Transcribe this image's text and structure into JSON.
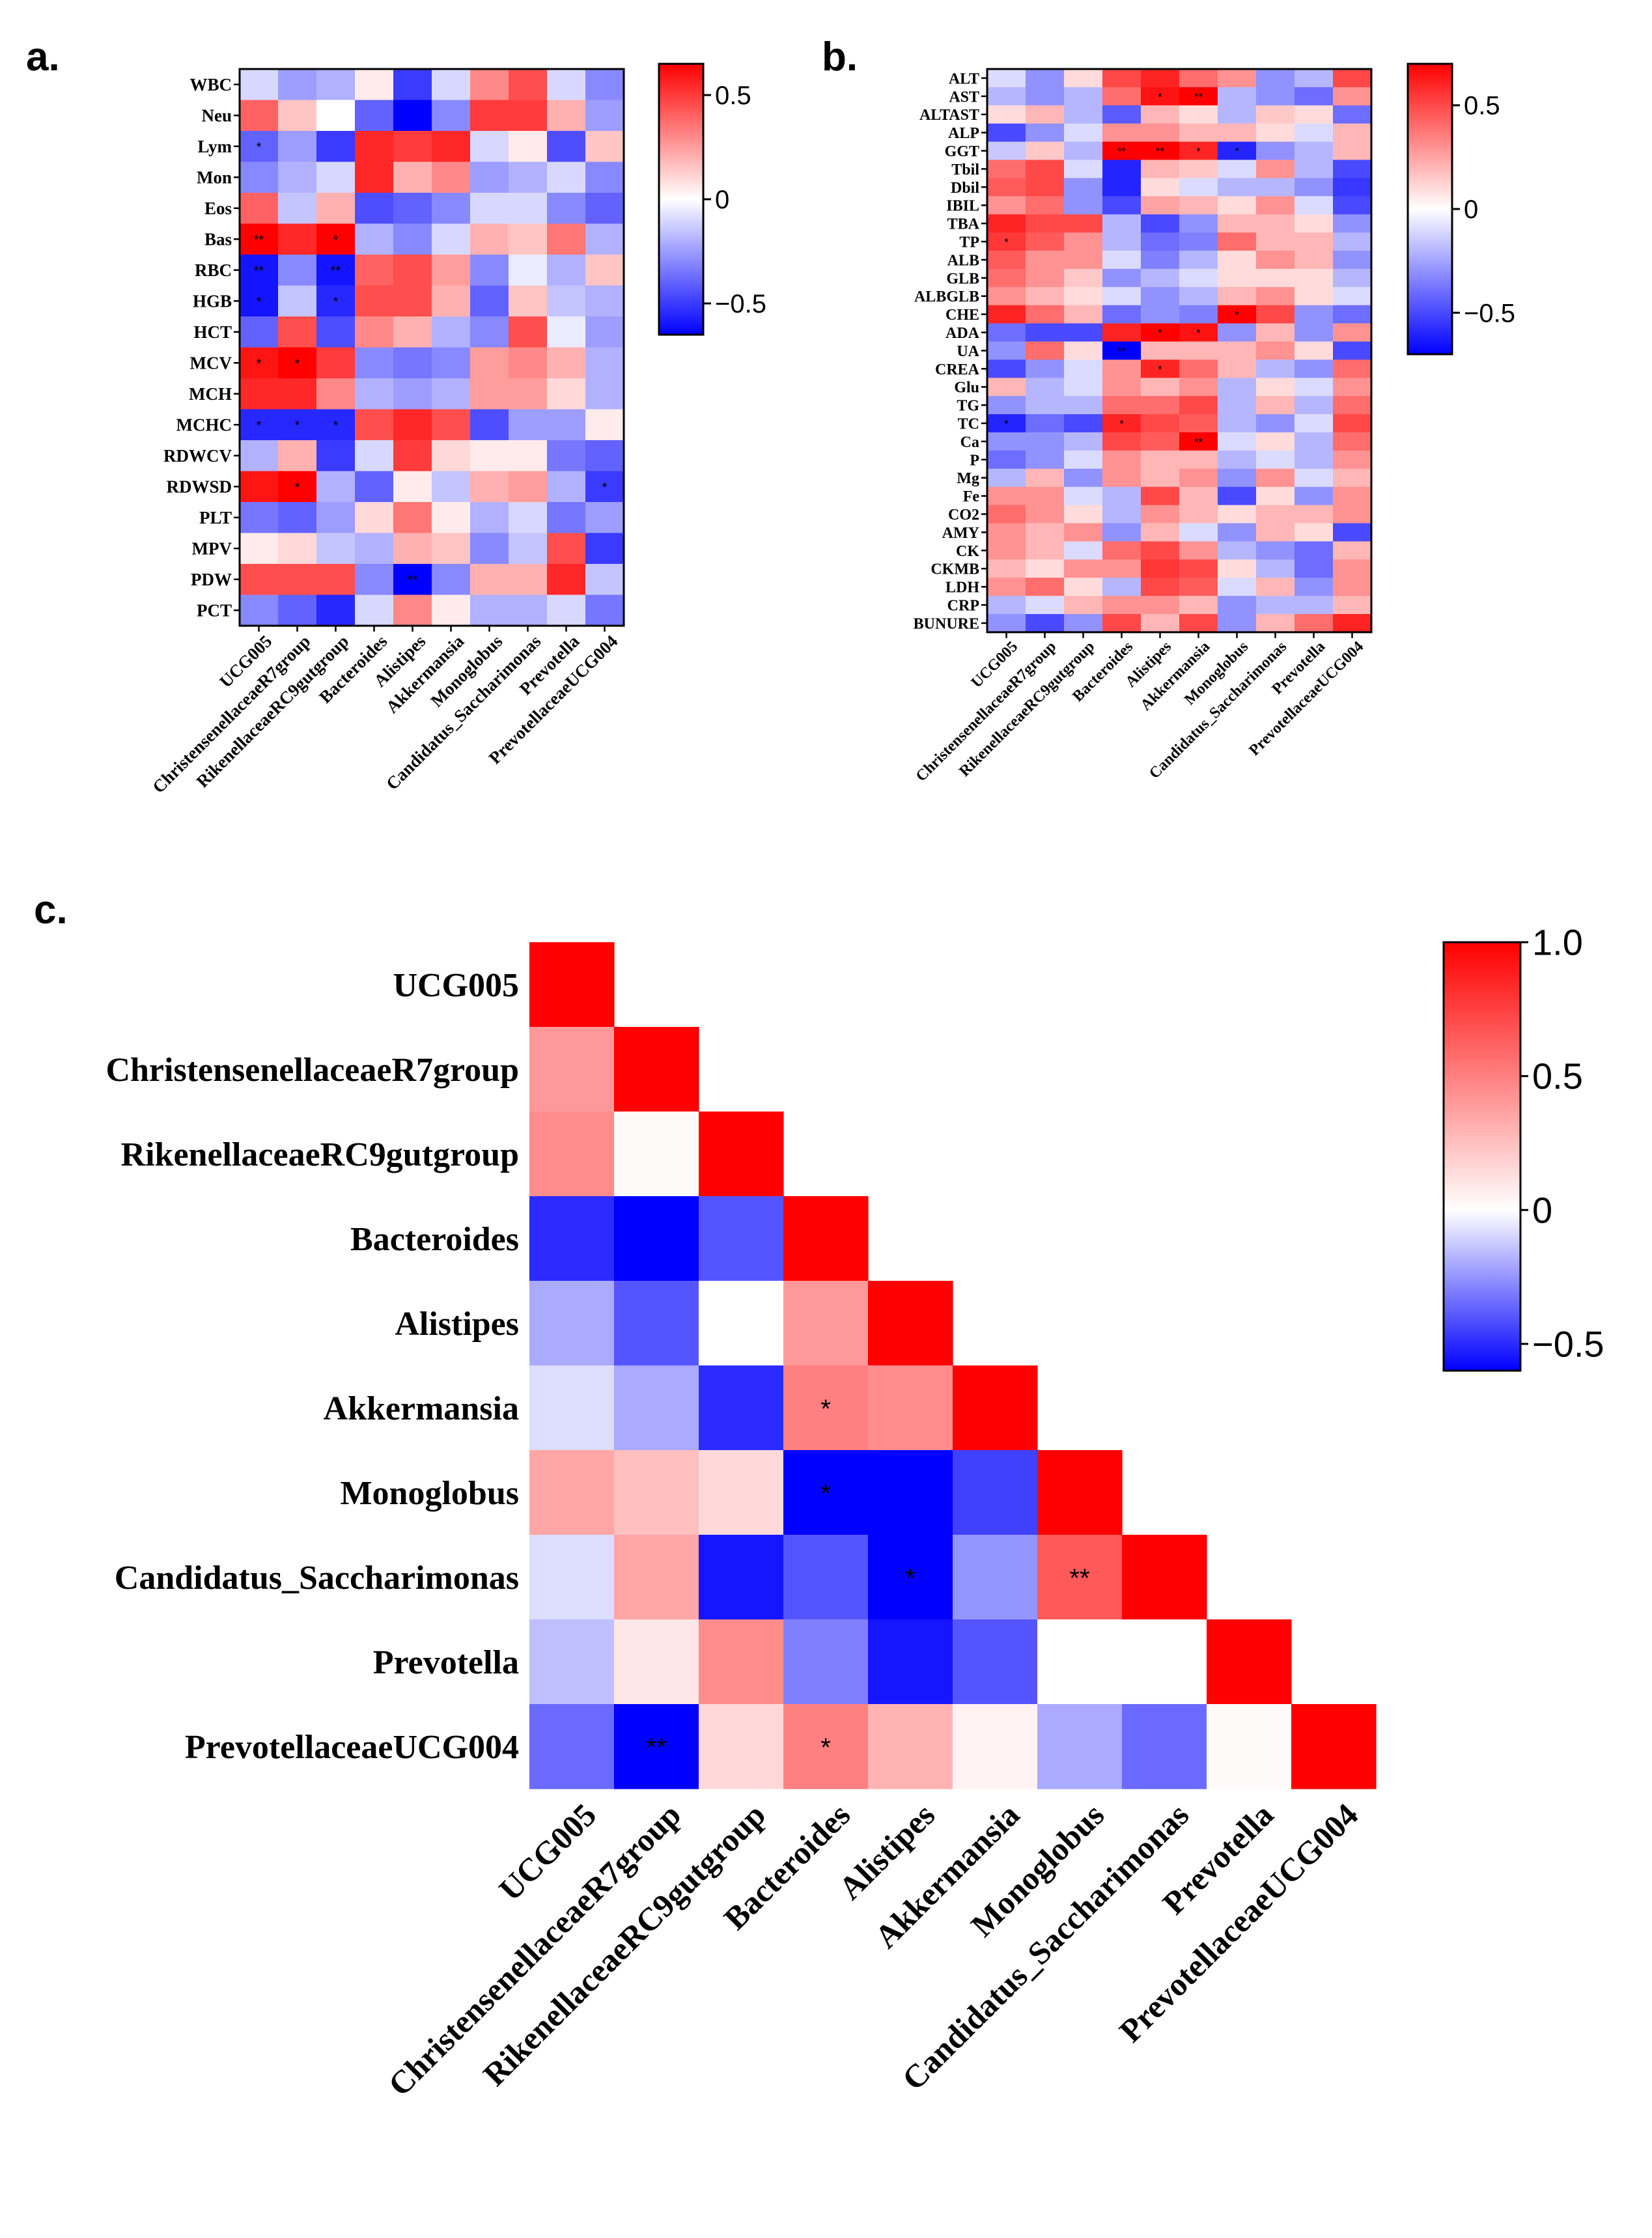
{
  "colors": {
    "neg": "#0000ff",
    "mid": "#ffffff",
    "pos": "#ff0000"
  },
  "chart_data": [
    {
      "panel": "a.",
      "type": "heatmap",
      "rows": [
        "WBC",
        "Neu",
        "Lym",
        "Mon",
        "Eos",
        "Bas",
        "RBC",
        "HGB",
        "HCT",
        "MCV",
        "MCH",
        "MCHC",
        "RDWCV",
        "RDWSD",
        "PLT",
        "MPV",
        "PDW",
        "PCT"
      ],
      "columns": [
        "UCG005",
        "ChristensenellaceaeR7group",
        "RikenellaceaeRC9gutgroup",
        "Bacteroides",
        "Alistipes",
        "Akkermansia",
        "Monoglobus",
        "Candidatus_Saccharimonas",
        "Prevotella",
        "PrevotellaceaeUCG004"
      ],
      "values": [
        [
          -0.1,
          -0.25,
          -0.2,
          0.05,
          -0.5,
          -0.1,
          0.3,
          0.45,
          -0.1,
          -0.3
        ],
        [
          0.4,
          0.15,
          0.0,
          -0.4,
          -0.65,
          -0.3,
          0.5,
          0.5,
          0.2,
          -0.25
        ],
        [
          -0.4,
          -0.25,
          -0.5,
          0.55,
          0.5,
          0.55,
          -0.1,
          0.05,
          -0.45,
          0.15
        ],
        [
          -0.3,
          -0.2,
          -0.1,
          0.55,
          0.2,
          0.3,
          -0.25,
          -0.2,
          -0.1,
          -0.3
        ],
        [
          0.4,
          -0.15,
          0.2,
          -0.45,
          -0.4,
          -0.3,
          -0.1,
          -0.1,
          -0.3,
          -0.4
        ],
        [
          0.7,
          0.55,
          0.65,
          -0.2,
          -0.3,
          -0.1,
          0.2,
          0.15,
          0.35,
          -0.2
        ],
        [
          -0.6,
          -0.3,
          -0.6,
          0.4,
          0.45,
          0.25,
          -0.3,
          -0.05,
          -0.2,
          0.15
        ],
        [
          -0.6,
          -0.15,
          -0.55,
          0.45,
          0.45,
          0.2,
          -0.4,
          0.15,
          -0.15,
          -0.2
        ],
        [
          -0.4,
          0.45,
          -0.45,
          0.3,
          0.2,
          -0.2,
          -0.3,
          0.45,
          -0.05,
          -0.25
        ],
        [
          0.6,
          0.7,
          0.5,
          -0.3,
          -0.35,
          -0.3,
          0.25,
          0.3,
          0.2,
          -0.2
        ],
        [
          0.55,
          0.55,
          0.3,
          -0.2,
          -0.25,
          -0.2,
          0.25,
          0.25,
          0.1,
          -0.2
        ],
        [
          -0.55,
          -0.55,
          -0.55,
          0.45,
          0.55,
          0.45,
          -0.45,
          -0.25,
          -0.25,
          0.05
        ],
        [
          -0.2,
          0.2,
          -0.5,
          -0.1,
          0.5,
          0.1,
          0.05,
          0.05,
          -0.35,
          -0.4
        ],
        [
          0.6,
          0.65,
          -0.2,
          -0.4,
          0.05,
          -0.15,
          0.2,
          0.25,
          -0.2,
          -0.5
        ],
        [
          -0.35,
          -0.4,
          -0.25,
          0.1,
          0.35,
          0.05,
          -0.2,
          -0.1,
          -0.35,
          -0.25
        ],
        [
          0.05,
          0.1,
          -0.15,
          -0.2,
          0.2,
          0.15,
          -0.3,
          -0.15,
          0.45,
          -0.5
        ],
        [
          0.45,
          0.45,
          0.45,
          -0.3,
          -0.75,
          -0.3,
          0.2,
          0.2,
          0.55,
          -0.15
        ],
        [
          -0.3,
          -0.4,
          -0.55,
          -0.1,
          0.3,
          0.05,
          -0.2,
          -0.2,
          -0.1,
          -0.35
        ]
      ],
      "significance": [
        {
          "row": 2,
          "col": 0,
          "mark": "*"
        },
        {
          "row": 5,
          "col": 0,
          "mark": "**"
        },
        {
          "row": 5,
          "col": 2,
          "mark": "*"
        },
        {
          "row": 6,
          "col": 0,
          "mark": "**"
        },
        {
          "row": 6,
          "col": 2,
          "mark": "**"
        },
        {
          "row": 7,
          "col": 0,
          "mark": "*"
        },
        {
          "row": 7,
          "col": 2,
          "mark": "*"
        },
        {
          "row": 9,
          "col": 0,
          "mark": "*"
        },
        {
          "row": 9,
          "col": 1,
          "mark": "*"
        },
        {
          "row": 11,
          "col": 0,
          "mark": "*"
        },
        {
          "row": 11,
          "col": 1,
          "mark": "*"
        },
        {
          "row": 11,
          "col": 2,
          "mark": "*"
        },
        {
          "row": 13,
          "col": 1,
          "mark": "*"
        },
        {
          "row": 13,
          "col": 9,
          "mark": "*"
        },
        {
          "row": 16,
          "col": 4,
          "mark": "**"
        }
      ],
      "colorbar": {
        "min": -0.65,
        "max": 0.65,
        "ticks": [
          0.5,
          0,
          -0.5
        ],
        "tick_labels": [
          "0.5",
          "0",
          "−0.5"
        ]
      }
    },
    {
      "panel": "b.",
      "type": "heatmap",
      "rows": [
        "ALT",
        "AST",
        "ALTAST",
        "ALP",
        "GGT",
        "Tbil",
        "Dbil",
        "IBIL",
        "TBA",
        "TP",
        "ALB",
        "GLB",
        "ALBGLB",
        "CHE",
        "ADA",
        "UA",
        "CREA",
        "Glu",
        "TG",
        "TC",
        "Ca",
        "P",
        "Mg",
        "Fe",
        "CO2",
        "AMY",
        "CK",
        "CKMB",
        "LDH",
        "CRP",
        "BUNURE"
      ],
      "columns": [
        "UCG005",
        "ChristensenellaceaeR7group",
        "RikenellaceaeRC9gutgroup",
        "Bacteroides",
        "Alistipes",
        "Akkermansia",
        "Monoglobus",
        "Candidatus_Saccharimonas",
        "Prevotella",
        "PrevotellaceaeUCG004"
      ],
      "values": [
        [
          -0.1,
          -0.3,
          0.1,
          0.5,
          0.6,
          0.4,
          0.3,
          -0.3,
          -0.2,
          0.5
        ],
        [
          -0.2,
          -0.3,
          -0.2,
          0.4,
          0.65,
          0.7,
          -0.2,
          -0.3,
          -0.4,
          0.3
        ],
        [
          0.1,
          0.2,
          -0.2,
          -0.45,
          0.2,
          0.1,
          -0.2,
          0.15,
          0.1,
          -0.4
        ],
        [
          -0.5,
          -0.3,
          -0.1,
          0.3,
          0.3,
          0.2,
          0.2,
          0.1,
          -0.1,
          0.2
        ],
        [
          -0.15,
          0.15,
          -0.2,
          0.7,
          0.7,
          0.6,
          -0.6,
          -0.3,
          -0.2,
          0.2
        ],
        [
          0.4,
          0.5,
          -0.1,
          -0.6,
          0.2,
          0.15,
          -0.1,
          0.3,
          -0.2,
          -0.5
        ],
        [
          0.45,
          0.5,
          -0.3,
          -0.6,
          0.1,
          -0.1,
          -0.2,
          -0.2,
          -0.3,
          -0.55
        ],
        [
          0.3,
          0.4,
          -0.3,
          -0.5,
          0.25,
          0.2,
          0.1,
          0.3,
          -0.1,
          -0.5
        ],
        [
          0.6,
          0.5,
          0.5,
          -0.2,
          -0.5,
          -0.3,
          0.2,
          0.2,
          0.1,
          -0.3
        ],
        [
          0.55,
          0.45,
          0.3,
          -0.2,
          -0.4,
          -0.35,
          0.4,
          0.2,
          0.2,
          -0.2
        ],
        [
          0.45,
          0.3,
          0.3,
          -0.1,
          -0.35,
          -0.2,
          0.1,
          0.3,
          0.2,
          -0.3
        ],
        [
          0.4,
          0.3,
          0.15,
          -0.3,
          -0.2,
          -0.1,
          0.1,
          0.1,
          0.1,
          -0.2
        ],
        [
          0.3,
          0.2,
          0.1,
          -0.1,
          -0.3,
          -0.2,
          0.2,
          0.3,
          0.1,
          -0.1
        ],
        [
          0.6,
          0.4,
          0.2,
          -0.4,
          -0.3,
          -0.35,
          0.7,
          0.5,
          -0.3,
          -0.4
        ],
        [
          -0.4,
          -0.5,
          -0.5,
          0.6,
          0.7,
          0.65,
          -0.3,
          0.2,
          -0.3,
          0.3
        ],
        [
          -0.3,
          0.4,
          0.1,
          -0.75,
          0.2,
          0.2,
          0.2,
          0.3,
          0.1,
          -0.5
        ],
        [
          -0.5,
          -0.3,
          -0.1,
          0.3,
          0.6,
          0.4,
          0.2,
          -0.2,
          -0.3,
          0.4
        ],
        [
          0.2,
          -0.2,
          -0.1,
          0.3,
          0.2,
          0.3,
          -0.2,
          0.1,
          -0.1,
          0.3
        ],
        [
          -0.3,
          -0.2,
          -0.2,
          0.4,
          0.4,
          0.5,
          -0.2,
          0.2,
          -0.2,
          0.4
        ],
        [
          -0.6,
          -0.4,
          -0.5,
          0.6,
          0.5,
          0.45,
          -0.2,
          -0.3,
          -0.1,
          0.5
        ],
        [
          -0.3,
          -0.3,
          -0.2,
          0.5,
          0.45,
          0.75,
          -0.1,
          0.1,
          -0.2,
          0.4
        ],
        [
          -0.4,
          -0.3,
          -0.1,
          0.3,
          0.2,
          0.2,
          -0.2,
          -0.1,
          -0.2,
          0.3
        ],
        [
          -0.2,
          0.2,
          -0.3,
          0.3,
          0.2,
          0.3,
          -0.3,
          0.3,
          -0.1,
          0.2
        ],
        [
          0.3,
          0.3,
          -0.1,
          -0.2,
          0.5,
          0.2,
          -0.5,
          0.1,
          -0.3,
          0.3
        ],
        [
          0.4,
          0.3,
          0.1,
          -0.2,
          0.3,
          0.2,
          0.1,
          0.2,
          0.2,
          0.3
        ],
        [
          0.3,
          0.2,
          0.3,
          -0.3,
          0.2,
          -0.1,
          -0.3,
          0.2,
          0.1,
          -0.5
        ],
        [
          0.3,
          0.2,
          -0.1,
          0.4,
          0.5,
          0.3,
          -0.2,
          -0.3,
          -0.4,
          0.2
        ],
        [
          0.2,
          0.1,
          0.3,
          0.3,
          0.55,
          0.5,
          0.1,
          -0.2,
          -0.4,
          0.3
        ],
        [
          0.3,
          0.4,
          0.1,
          -0.2,
          0.5,
          0.45,
          -0.1,
          0.2,
          -0.3,
          0.3
        ],
        [
          -0.2,
          -0.1,
          0.2,
          0.3,
          0.3,
          0.2,
          -0.3,
          -0.2,
          -0.2,
          0.2
        ],
        [
          -0.3,
          -0.5,
          -0.3,
          0.5,
          0.2,
          0.5,
          -0.3,
          0.2,
          0.4,
          0.6
        ]
      ],
      "significance": [
        {
          "row": 1,
          "col": 4,
          "mark": "*"
        },
        {
          "row": 1,
          "col": 5,
          "mark": "**"
        },
        {
          "row": 4,
          "col": 3,
          "mark": "**"
        },
        {
          "row": 4,
          "col": 4,
          "mark": "**"
        },
        {
          "row": 4,
          "col": 5,
          "mark": "*"
        },
        {
          "row": 4,
          "col": 6,
          "mark": "*"
        },
        {
          "row": 9,
          "col": 0,
          "mark": "*"
        },
        {
          "row": 13,
          "col": 6,
          "mark": "*"
        },
        {
          "row": 14,
          "col": 4,
          "mark": "*"
        },
        {
          "row": 14,
          "col": 5,
          "mark": "*"
        },
        {
          "row": 15,
          "col": 3,
          "mark": "**"
        },
        {
          "row": 16,
          "col": 4,
          "mark": "*"
        },
        {
          "row": 19,
          "col": 0,
          "mark": "*"
        },
        {
          "row": 19,
          "col": 3,
          "mark": "*"
        },
        {
          "row": 20,
          "col": 5,
          "mark": "**"
        }
      ],
      "colorbar": {
        "min": -0.7,
        "max": 0.7,
        "ticks": [
          0.5,
          0,
          -0.5
        ],
        "tick_labels": [
          "0.5",
          "0",
          "−0.5"
        ]
      }
    },
    {
      "panel": "c.",
      "type": "heatmap",
      "layout": "lower-triangle",
      "rows": [
        "UCG005",
        "ChristensenellaceaeR7group",
        "RikenellaceaeRC9gutgroup",
        "Bacteroides",
        "Alistipes",
        "Akkermansia",
        "Monoglobus",
        "Candidatus_Saccharimonas",
        "Prevotella",
        "PrevotellaceaeUCG004"
      ],
      "columns": [
        "UCG005",
        "ChristensenellaceaeR7group",
        "RikenellaceaeRC9gutgroup",
        "Bacteroides",
        "Alistipes",
        "Akkermansia",
        "Monoglobus",
        "Candidatus_Saccharimonas",
        "Prevotella",
        "PrevotellaceaeUCG004"
      ],
      "values": [
        [
          1.0
        ],
        [
          0.4,
          1.0
        ],
        [
          0.45,
          0.02,
          1.0
        ],
        [
          -0.5,
          -0.65,
          -0.4,
          1.0
        ],
        [
          -0.2,
          -0.4,
          0.0,
          0.4,
          1.0
        ],
        [
          -0.08,
          -0.2,
          -0.5,
          0.5,
          0.45,
          1.0
        ],
        [
          0.35,
          0.25,
          0.15,
          -0.75,
          -0.65,
          -0.45,
          1.0
        ],
        [
          -0.08,
          0.35,
          -0.55,
          -0.4,
          -0.7,
          -0.25,
          0.65,
          1.0
        ],
        [
          -0.15,
          0.1,
          0.45,
          -0.3,
          -0.55,
          -0.4,
          0.0,
          0.0,
          1.0
        ],
        [
          -0.35,
          -0.8,
          0.15,
          0.5,
          0.3,
          0.05,
          -0.2,
          -0.35,
          0.02,
          1.0
        ]
      ],
      "significance": [
        {
          "row": 5,
          "col": 3,
          "mark": "*"
        },
        {
          "row": 6,
          "col": 3,
          "mark": "*"
        },
        {
          "row": 7,
          "col": 4,
          "mark": "*"
        },
        {
          "row": 7,
          "col": 6,
          "mark": "**"
        },
        {
          "row": 9,
          "col": 1,
          "mark": "**"
        },
        {
          "row": 9,
          "col": 3,
          "mark": "*"
        }
      ],
      "colorbar": {
        "min": -0.6,
        "max": 1.0,
        "ticks": [
          1.0,
          0.5,
          0,
          -0.5
        ],
        "tick_labels": [
          "1.0",
          "0.5",
          "0",
          "−0.5"
        ]
      }
    }
  ]
}
